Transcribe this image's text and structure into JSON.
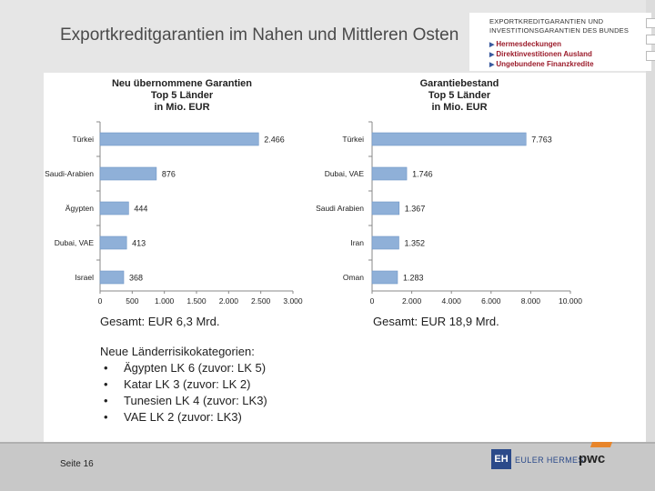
{
  "slide": {
    "title": "Exportkreditgarantien im Nahen und Mittleren Osten",
    "logo": {
      "line1": "EXPORTKREDITGARANTIEN UND",
      "line2": "INVESTITIONSGARANTIEN DES BUNDES",
      "items": [
        "Hermesdeckungen",
        "Direktinvestitionen Ausland",
        "Ungebundene Finanzkredite"
      ]
    },
    "totals": [
      "Gesamt: EUR 6,3 Mrd.",
      "Gesamt: EUR 18,9 Mrd."
    ],
    "notes": {
      "heading": "Neue Länderrisikokategorien:",
      "items": [
        "Ägypten LK 6 (zuvor: LK 5)",
        "Katar LK 3 (zuvor: LK 2)",
        "Tunesien LK 4 (zuvor: LK3)",
        "VAE LK 2 (zuvor: LK3)"
      ]
    },
    "page_number": "Seite 16",
    "footer": {
      "euler_hermes": "EULER HERMES",
      "eh_mark": "EH",
      "pwc": "pwc"
    },
    "colors": {
      "bar": "#8fb0d8",
      "bar_edge": "#6f96c6",
      "footer": "#c8c8c8"
    }
  },
  "chart_data": [
    {
      "type": "bar",
      "orientation": "horizontal",
      "title": "Neu übernommene Garantien Top 5 Länder in Mio. EUR",
      "title_lines": [
        "Neu übernommene Garantien",
        "Top 5 Länder",
        "in Mio. EUR"
      ],
      "categories": [
        "Türkei",
        "Saudi-Arabien",
        "Ägypten",
        "Dubai, VAE",
        "Israel"
      ],
      "values": [
        2466,
        876,
        444,
        413,
        368
      ],
      "value_labels": [
        "2.466",
        "876",
        "444",
        "413",
        "368"
      ],
      "xlim": [
        0,
        3000
      ],
      "ticks": [
        0,
        500,
        1000,
        1500,
        2000,
        2500,
        3000
      ],
      "tick_labels": [
        "0",
        "500",
        "1.000",
        "1.500",
        "2.000",
        "2.500",
        "3.000"
      ],
      "grid": false
    },
    {
      "type": "bar",
      "orientation": "horizontal",
      "title": "Garantiebestand Top 5 Länder in Mio. EUR",
      "title_lines": [
        "Garantiebestand",
        "Top 5 Länder",
        "in Mio. EUR"
      ],
      "categories": [
        "Türkei",
        "Dubai, VAE",
        "Saudi Arabien",
        "Iran",
        "Oman"
      ],
      "values": [
        7763,
        1746,
        1367,
        1352,
        1283
      ],
      "value_labels": [
        "7.763",
        "1.746",
        "1.367",
        "1.352",
        "1.283"
      ],
      "xlim": [
        0,
        10000
      ],
      "ticks": [
        0,
        2000,
        4000,
        6000,
        8000,
        10000
      ],
      "tick_labels": [
        "0",
        "2.000",
        "4.000",
        "6.000",
        "8.000",
        "10.000"
      ],
      "grid": false
    }
  ]
}
